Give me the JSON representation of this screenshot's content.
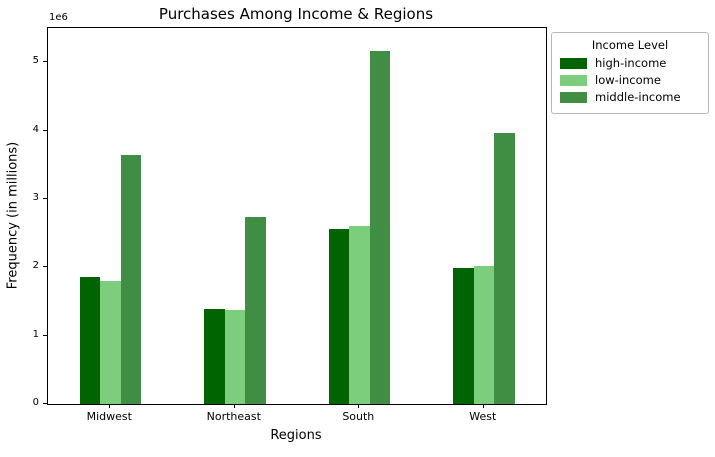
{
  "title": "Purchases Among Income & Regions",
  "axes": {
    "xlabel": "Regions",
    "ylabel": "Frequency (in millions)",
    "offset_label": "1e6"
  },
  "legend": {
    "title": "Income Level"
  },
  "chart_data": {
    "type": "bar",
    "title": "Purchases Among Income & Regions",
    "xlabel": "Regions",
    "ylabel": "Frequency (in millions)",
    "y_multiplier": "1e6",
    "categories": [
      "Midwest",
      "Northeast",
      "South",
      "West"
    ],
    "series": [
      {
        "name": "high-income",
        "color": "#006400",
        "values": [
          1860000,
          1390000,
          2560000,
          1990000
        ]
      },
      {
        "name": "low-income",
        "color": "#7CCD7C",
        "values": [
          1800000,
          1370000,
          2600000,
          2020000
        ]
      },
      {
        "name": "middle-income",
        "color": "#3F8E43",
        "values": [
          3640000,
          2740000,
          5170000,
          3970000
        ]
      }
    ],
    "ylim": [
      0,
      5500000
    ],
    "yticks": [
      0,
      1000000,
      2000000,
      3000000,
      4000000,
      5000000
    ],
    "ytick_labels": [
      "0",
      "1",
      "2",
      "3",
      "4",
      "5"
    ],
    "grid": false,
    "legend_title": "Income Level",
    "legend_position": "upper right, outside plot"
  }
}
